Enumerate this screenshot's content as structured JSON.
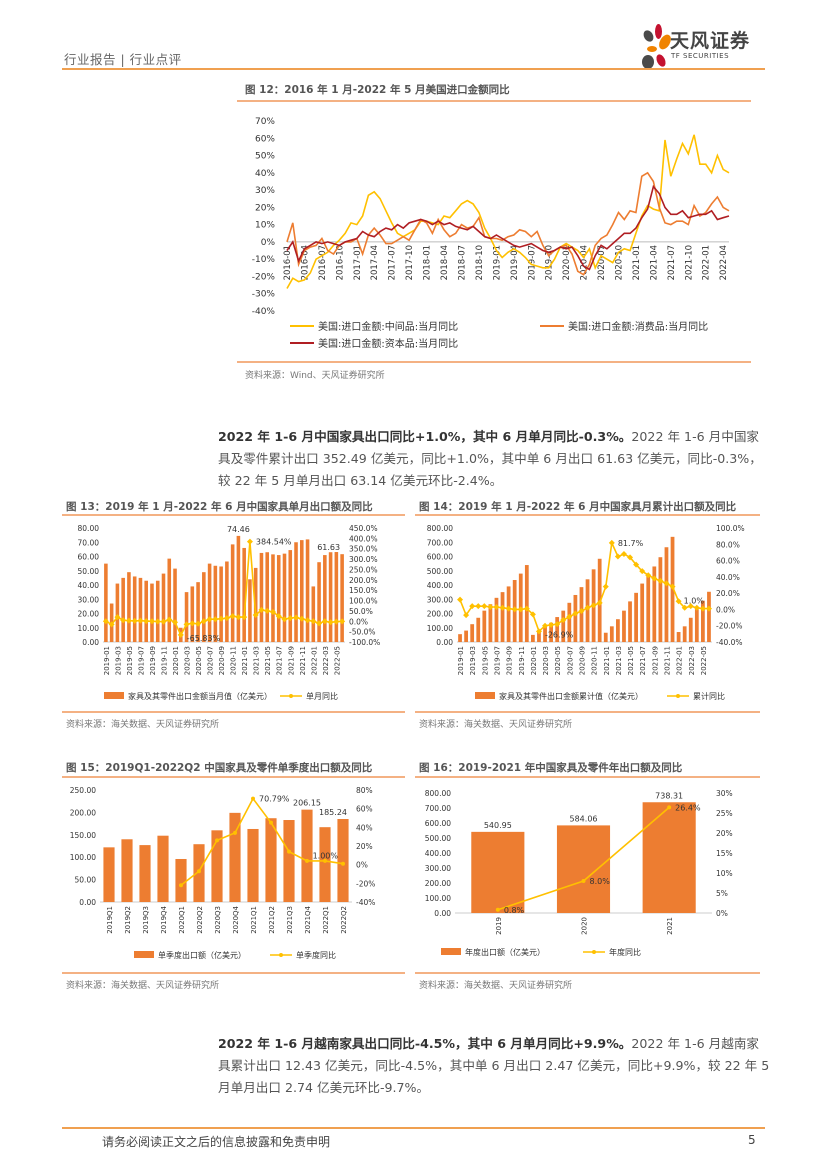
{
  "header": {
    "section": "行业报告 | 行业点评",
    "logo_cn": "天风证券",
    "logo_en": "TF SECURITIES"
  },
  "colors": {
    "accent": "#F0A050",
    "bar": "#ED7D31",
    "line_yellow": "#FFC000",
    "line_orange": "#ED7D31",
    "line_red": "#B01E23"
  },
  "fig12": {
    "title": "图 12：2016 年 1 月-2022 年 5 月美国进口金额同比",
    "source": "资料来源：Wind、天风证券研究所"
  },
  "para1": {
    "bold": "2022 年 1-6 月中国家具出口同比+1.0%，其中 6 月单月同比-0.3%。",
    "text": "2022 年 1-6 月中国家具及零件累计出口 352.49 亿美元，同比+1.0%，其中单 6 月出口 61.63 亿美元，同比-0.3%，较 22 年 5 月单月出口 63.14 亿美元环比-2.4%。"
  },
  "fig13": {
    "title": "图 13：2019 年 1 月-2022 年 6 月中国家具单月出口额及同比",
    "source": "资料来源：海关数据、天风证券研究所"
  },
  "fig14": {
    "title": "图 14：2019 年 1 月-2022 年 6 月中国家具月累计出口额及同比",
    "source": "资料来源：海关数据、天风证券研究所"
  },
  "fig15": {
    "title": "图 15：2019Q1-2022Q2 中国家具及零件单季度出口额及同比",
    "source": "资料来源：海关数据、天风证券研究所"
  },
  "fig16": {
    "title": "图 16：2019-2021 年中国家具及零件年出口额及同比",
    "source": "资料来源：海关数据、天风证券研究所"
  },
  "para2": {
    "bold": "2022 年 1-6 月越南家具出口同比-4.5%，其中 6 月单月同比+9.9%。",
    "text": "2022 年 1-6 月越南家具累计出口 12.43 亿美元，同比-4.5%，其中单 6 月出口 2.47 亿美元，同比+9.9%，较 22 年 5 月单月出口 2.74 亿美元环比-9.7%。"
  },
  "footer": {
    "disclaimer": "请务必阅读正文之后的信息披露和免责申明",
    "page": "5"
  },
  "chart_data": [
    {
      "id": "fig12",
      "type": "line",
      "title": "2016 年 1 月-2022 年 5 月美国进口金额同比",
      "x_start": "2016-01",
      "x_end": "2022-05",
      "x_tick_labels": [
        "2016-01",
        "2016-04",
        "2016-07",
        "2016-10",
        "2017-01",
        "2017-04",
        "2017-07",
        "2017-10",
        "2018-01",
        "2018-04",
        "2018-07",
        "2018-10",
        "2019-01",
        "2019-04",
        "2019-07",
        "2019-10",
        "2020-01",
        "2020-04",
        "2020-07",
        "2020-10",
        "2021-01",
        "2021-04",
        "2021-07",
        "2021-10",
        "2022-01",
        "2022-04"
      ],
      "y": {
        "min": -40,
        "max": 70,
        "ticks": [
          70,
          60,
          50,
          40,
          30,
          20,
          10,
          0,
          -10,
          -20,
          -30,
          -40
        ],
        "tick_labels": [
          "70%",
          "60%",
          "50%",
          "40%",
          "30%",
          "20%",
          "10%",
          "0%",
          "-10%",
          "-20%",
          "-30%",
          "-40%"
        ]
      },
      "series": [
        {
          "name": "美国:进口金额:中间品:当月同比",
          "color": "#FFC000",
          "values": [
            -27,
            -21,
            -23,
            -22,
            -18,
            -10,
            -8,
            -6,
            -2,
            1,
            5,
            11,
            10,
            15,
            27,
            29,
            25,
            18,
            11,
            5,
            3,
            5,
            7,
            12,
            12,
            11,
            10,
            15,
            14,
            18,
            22,
            24,
            22,
            17,
            8,
            2,
            -5,
            -9,
            -6,
            -4,
            -6,
            -9,
            -13,
            -14,
            -15,
            -15,
            -10,
            -3,
            -1,
            -3,
            -5,
            -9,
            -4,
            -15,
            -8,
            -10,
            -12,
            -6,
            -4,
            -5,
            5,
            15,
            21,
            19,
            18,
            59,
            38,
            48,
            57,
            51,
            62,
            45,
            45,
            40,
            50,
            42,
            40
          ]
        },
        {
          "name": "美国:进口金额:消费品:当月同比",
          "color": "#ED7D31",
          "values": [
            0,
            11,
            -13,
            -5,
            -3,
            -2,
            2,
            -5,
            -7,
            -2,
            0,
            0,
            2,
            -7,
            4,
            8,
            4,
            -1,
            -1,
            1,
            3,
            1,
            7,
            13,
            11,
            5,
            13,
            7,
            3,
            5,
            10,
            8,
            9,
            14,
            3,
            2,
            2,
            1,
            3,
            4,
            7,
            6,
            3,
            6,
            -2,
            -8,
            -5,
            -3,
            -2,
            -7,
            -17,
            -19,
            -13,
            -2,
            2,
            4,
            10,
            17,
            13,
            18,
            17,
            38,
            40,
            35,
            20,
            11,
            10,
            12,
            12,
            10,
            21,
            15,
            17,
            22,
            26,
            20,
            18
          ]
        },
        {
          "name": "美国:进口金额:资本品:当月同比",
          "color": "#B01E23",
          "values": [
            -5,
            0,
            -11,
            -4,
            -2,
            0,
            -1,
            0,
            -1,
            -2,
            0,
            1,
            2,
            6,
            4,
            3,
            6,
            8,
            7,
            10,
            8,
            11,
            12,
            13,
            12,
            10,
            12,
            10,
            11,
            9,
            8,
            7,
            9,
            6,
            3,
            2,
            4,
            2,
            0,
            -2,
            -3,
            -2,
            -1,
            -3,
            -5,
            -6,
            -5,
            -3,
            -4,
            -3,
            -8,
            -14,
            -16,
            -8,
            -2,
            -4,
            -1,
            2,
            5,
            5,
            8,
            14,
            19,
            32,
            28,
            20,
            16,
            16,
            18,
            14,
            15,
            16,
            16,
            18,
            13,
            14,
            15
          ]
        }
      ],
      "legend": "bottom"
    },
    {
      "id": "fig13",
      "type": "bar+line",
      "title": "2019 年 1 月-2022 年 6 月中国家具单月出口额及同比",
      "categories": [
        "2019-01",
        "2019-02",
        "2019-03",
        "2019-04",
        "2019-05",
        "2019-06",
        "2019-07",
        "2019-08",
        "2019-09",
        "2019-10",
        "2019-11",
        "2019-12",
        "2020-01",
        "2020-02",
        "2020-03",
        "2020-04",
        "2020-05",
        "2020-06",
        "2020-07",
        "2020-08",
        "2020-09",
        "2020-10",
        "2020-11",
        "2020-12",
        "2021-01",
        "2021-02",
        "2021-03",
        "2021-04",
        "2021-05",
        "2021-06",
        "2021-07",
        "2021-08",
        "2021-09",
        "2021-10",
        "2021-11",
        "2021-12",
        "2022-01",
        "2022-02",
        "2022-03",
        "2022-04",
        "2022-05",
        "2022-06"
      ],
      "bars": {
        "name": "家具及其零件出口金额当月值（亿美元）",
        "values": [
          55,
          27,
          41,
          45,
          49,
          46,
          45,
          43,
          41,
          43,
          48,
          58.5,
          51.5,
          10,
          35,
          39,
          42,
          49,
          55,
          53.5,
          53,
          56.5,
          68.5,
          74.46,
          66,
          44,
          52,
          62.5,
          63,
          61.5,
          61,
          62,
          64.5,
          70,
          71.5,
          72,
          39,
          56,
          61,
          63,
          63.14,
          61.63
        ]
      },
      "line": {
        "name": "单月同比",
        "values": [
          0,
          -15,
          20,
          5,
          3,
          2,
          3,
          1,
          0,
          -1,
          -2,
          8,
          -5,
          -65.83,
          -15,
          -10,
          -12,
          0,
          10,
          10,
          12,
          15,
          25,
          20,
          20,
          384.54,
          30,
          55,
          50,
          45,
          25,
          10,
          15,
          18,
          12,
          5,
          0,
          -10,
          0,
          -5,
          -2,
          -0.3
        ],
        "marker": "diamond"
      },
      "y_left": {
        "min": 0,
        "max": 80,
        "ticks": [
          0,
          10,
          20,
          30,
          40,
          50,
          60,
          70,
          80
        ],
        "tick_labels": [
          "0.00",
          "10.00",
          "20.00",
          "30.00",
          "40.00",
          "50.00",
          "60.00",
          "70.00",
          "80.00"
        ]
      },
      "y_right": {
        "min": -100,
        "max": 450,
        "ticks": [
          -100,
          -50,
          0,
          50,
          100,
          150,
          200,
          250,
          300,
          350,
          400,
          450
        ],
        "tick_labels": [
          "-100.0%",
          "-50.0%",
          "0.0%",
          "50.0%",
          "100.0%",
          "150.0%",
          "200.0%",
          "250.0%",
          "300.0%",
          "350.0%",
          "400.0%",
          "450.0%"
        ]
      },
      "annotations": [
        {
          "series": "bar",
          "index": 23,
          "text": "74.46"
        },
        {
          "series": "line",
          "index": 25,
          "text": "384.54%"
        },
        {
          "series": "line",
          "index": 13,
          "text": "-65.83%"
        },
        {
          "series": "bar",
          "index": 41,
          "text": "61.63"
        }
      ],
      "legend": "bottom"
    },
    {
      "id": "fig14",
      "type": "bar+line",
      "title": "2019 年 1 月-2022 年 6 月中国家具月累计出口额及同比",
      "categories": [
        "2019-01",
        "2019-02",
        "2019-03",
        "2019-04",
        "2019-05",
        "2019-06",
        "2019-07",
        "2019-08",
        "2019-09",
        "2019-10",
        "2019-11",
        "2019-12",
        "2020-01",
        "2020-02",
        "2020-03",
        "2020-04",
        "2020-05",
        "2020-06",
        "2020-07",
        "2020-08",
        "2020-09",
        "2020-10",
        "2020-11",
        "2020-12",
        "2021-01",
        "2021-02",
        "2021-03",
        "2021-04",
        "2021-05",
        "2021-06",
        "2021-07",
        "2021-08",
        "2021-09",
        "2021-10",
        "2021-11",
        "2021-12",
        "2022-01",
        "2022-02",
        "2022-03",
        "2022-04",
        "2022-05",
        "2022-06"
      ],
      "bars": {
        "name": "家具及其零件出口金额累计值（亿美元）",
        "values": [
          55,
          80,
          125,
          170,
          220,
          265,
          310,
          350,
          390,
          435,
          480,
          540,
          50,
          80,
          105,
          135,
          175,
          220,
          275,
          330,
          385,
          440,
          510,
          584,
          65,
          110,
          160,
          220,
          285,
          345,
          410,
          470,
          530,
          595,
          665,
          738,
          70,
          110,
          170,
          230,
          290,
          352.49
        ]
      },
      "line": {
        "name": "累计同比",
        "values": [
          12,
          -7,
          4,
          4,
          4,
          3,
          3,
          2,
          1,
          0,
          0,
          1,
          -6,
          -26.9,
          -20,
          -19,
          -18,
          -13,
          -9,
          -5,
          -2,
          2,
          5,
          8,
          28,
          81.7,
          65,
          68,
          64,
          55,
          47,
          42,
          38,
          35,
          32,
          28,
          10,
          2,
          4,
          2,
          1,
          1.0
        ],
        "marker": "diamond"
      },
      "y_left": {
        "min": 0,
        "max": 800,
        "ticks": [
          0,
          100,
          200,
          300,
          400,
          500,
          600,
          700,
          800
        ],
        "tick_labels": [
          "0.00",
          "100.00",
          "200.00",
          "300.00",
          "400.00",
          "500.00",
          "600.00",
          "700.00",
          "800.00"
        ]
      },
      "y_right": {
        "min": -40,
        "max": 100,
        "ticks": [
          -40,
          -20,
          0,
          20,
          40,
          60,
          80,
          100
        ],
        "tick_labels": [
          "-40.0%",
          "-20.0%",
          "0.0%",
          "20.0%",
          "40.0%",
          "60.0%",
          "80.0%",
          "100.0%"
        ]
      },
      "annotations": [
        {
          "series": "line",
          "index": 25,
          "text": "81.7%"
        },
        {
          "series": "line",
          "index": 13,
          "text": "-26.9%"
        },
        {
          "series": "line",
          "index": 41,
          "text": "1.0%"
        }
      ],
      "legend": "bottom"
    },
    {
      "id": "fig15",
      "type": "bar+line",
      "title": "2019Q1-2022Q2 中国家具及零件单季度出口额及同比",
      "categories": [
        "2019Q1",
        "2019Q2",
        "2019Q3",
        "2019Q4",
        "2020Q1",
        "2020Q2",
        "2020Q3",
        "2020Q4",
        "2021Q1",
        "2021Q2",
        "2021Q3",
        "2021Q4",
        "2022Q1",
        "2022Q2"
      ],
      "bars": {
        "name": "单季度出口额（亿美元）",
        "values": [
          122,
          140,
          127,
          148,
          96,
          129,
          160,
          199,
          163,
          187,
          183,
          206.15,
          167,
          185.24
        ]
      },
      "line": {
        "name": "单季度同比",
        "values": [
          null,
          null,
          null,
          null,
          -22,
          -7,
          26,
          34,
          70.79,
          45,
          14,
          4,
          4,
          1.0
        ],
        "marker": "dot"
      },
      "y_left": {
        "min": 0,
        "max": 250,
        "ticks": [
          0,
          50,
          100,
          150,
          200,
          250
        ],
        "tick_labels": [
          "0.00",
          "50.00",
          "100.00",
          "150.00",
          "200.00",
          "250.00"
        ]
      },
      "y_right": {
        "min": -40,
        "max": 80,
        "ticks": [
          -40,
          -20,
          0,
          20,
          40,
          60,
          80
        ],
        "tick_labels": [
          "-40%",
          "-20%",
          "0%",
          "20%",
          "40%",
          "60%",
          "80%"
        ]
      },
      "annotations": [
        {
          "series": "line",
          "index": 8,
          "text": "70.79%"
        },
        {
          "series": "bar",
          "index": 11,
          "text": "206.15"
        },
        {
          "series": "bar",
          "index": 13,
          "text": "185.24"
        },
        {
          "series": "line",
          "index": 13,
          "text": "1.00%"
        }
      ],
      "legend": "bottom"
    },
    {
      "id": "fig16",
      "type": "bar+line",
      "title": "2019-2021 年中国家具及零件年出口额及同比",
      "categories": [
        "2019",
        "2020",
        "2021"
      ],
      "bars": {
        "name": "年度出口额（亿美元）",
        "values": [
          540.95,
          584.06,
          738.31
        ]
      },
      "line": {
        "name": "年度同比",
        "values": [
          0.8,
          8.0,
          26.4
        ],
        "marker": "dot"
      },
      "y_left": {
        "min": 0,
        "max": 800,
        "ticks": [
          0,
          100,
          200,
          300,
          400,
          500,
          600,
          700,
          800
        ],
        "tick_labels": [
          "0.00",
          "100.00",
          "200.00",
          "300.00",
          "400.00",
          "500.00",
          "600.00",
          "700.00",
          "800.00"
        ]
      },
      "y_right": {
        "min": 0,
        "max": 30,
        "ticks": [
          0,
          5,
          10,
          15,
          20,
          25,
          30
        ],
        "tick_labels": [
          "0%",
          "5%",
          "10%",
          "15%",
          "20%",
          "25%",
          "30%"
        ]
      },
      "annotations": [
        {
          "series": "bar",
          "index": 0,
          "text": "540.95"
        },
        {
          "series": "bar",
          "index": 1,
          "text": "584.06"
        },
        {
          "series": "bar",
          "index": 2,
          "text": "738.31"
        },
        {
          "series": "line",
          "index": 0,
          "text": "0.8%"
        },
        {
          "series": "line",
          "index": 1,
          "text": "8.0%"
        },
        {
          "series": "line",
          "index": 2,
          "text": "26.4%"
        }
      ],
      "legend": "bottom"
    }
  ]
}
